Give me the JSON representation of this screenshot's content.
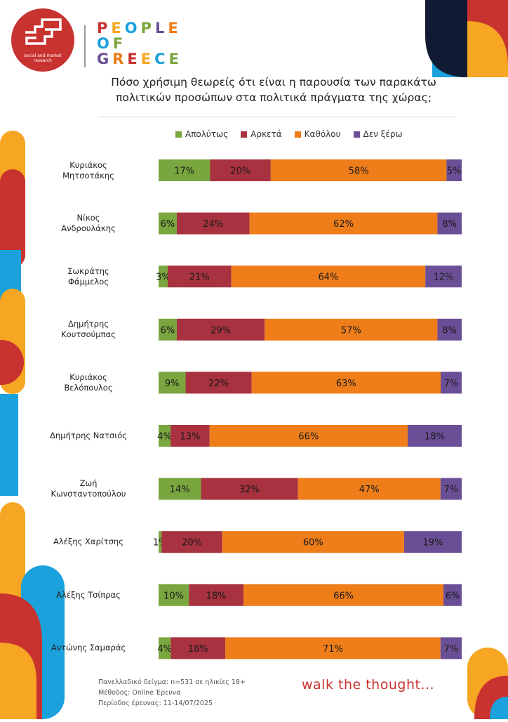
{
  "logo": {
    "tagline_1": "social and market",
    "tagline_2": "research"
  },
  "brand": {
    "line1": "PEOPLE",
    "line2": "OF",
    "line3": "GREECE"
  },
  "title_1": "Πόσο χρήσιμη θεωρείς ότι είναι η παρουσία των παρακάτω",
  "title_2": "πολιτικών προσώπων στα πολιτικά πράγματα της χώρας;",
  "footer": {
    "sample": "Πανελλαδικό δείγμα: n=531 σε ηλικίες 18+",
    "method": "Μέθοδος: Online Έρευνα",
    "period": "Περίοδος έρευνας: 11-14/07/2025",
    "slogan": "walk the thought..."
  },
  "colors": {
    "apolytos": "#7aa63f",
    "arketa": "#a8323f",
    "katholou": "#ee7d1a",
    "den_xero": "#6b4f96",
    "brand_red": "#c8322f",
    "brand_orange": "#f6a623",
    "brand_blue": "#1ba1dc",
    "brand_navy": "#111a33"
  },
  "chart_data": {
    "type": "bar",
    "orientation": "horizontal",
    "stacked": true,
    "legend_position": "top",
    "categories": [
      [
        "Κυριάκος",
        "Μητσοτάκης"
      ],
      [
        "Νίκος",
        "Ανδρουλάκης"
      ],
      [
        "Σωκράτης",
        "Φάμμελος"
      ],
      [
        "Δημήτρης",
        "Κουτσούμπας"
      ],
      [
        "Κυριάκος",
        "Βελόπουλος"
      ],
      [
        "Δημήτρης Νατσιός"
      ],
      [
        "Ζωή",
        "Κωνσταντοπούλου"
      ],
      [
        "Αλέξης Χαρίτσης"
      ],
      [
        "Αλέξης Τσίπρας"
      ],
      [
        "Αντώνης Σαμαράς"
      ]
    ],
    "series": [
      {
        "name": "Απολύτως",
        "values": [
          17,
          6,
          3,
          6,
          9,
          4,
          14,
          1,
          10,
          4
        ],
        "labels": [
          "17%",
          "6%",
          "3%",
          "6%",
          "9%",
          "4%",
          "14%",
          "1%",
          "10%",
          "4%"
        ]
      },
      {
        "name": "Αρκετά",
        "values": [
          20,
          24,
          21,
          29,
          22,
          13,
          32,
          20,
          18,
          18
        ],
        "labels": [
          "20%",
          "24%",
          "21%",
          "29%",
          "22%",
          "13%",
          "32%",
          "20%",
          "18%",
          "18%"
        ]
      },
      {
        "name": "Καθόλου",
        "values": [
          58,
          62,
          64,
          57,
          63,
          66,
          47,
          60,
          66,
          71
        ],
        "labels": [
          "58%",
          "62%",
          "64%",
          "57%",
          "63%",
          "66%",
          "47%",
          "60%",
          "66%",
          "71%"
        ]
      },
      {
        "name": "Δεν ξέρω",
        "values": [
          5,
          8,
          12,
          8,
          7,
          18,
          7,
          19,
          6,
          7
        ],
        "labels": [
          "5%",
          "8%",
          "12%",
          "8%",
          "7%",
          "18%",
          "7%",
          "19%",
          "6%",
          "7%"
        ]
      }
    ]
  }
}
